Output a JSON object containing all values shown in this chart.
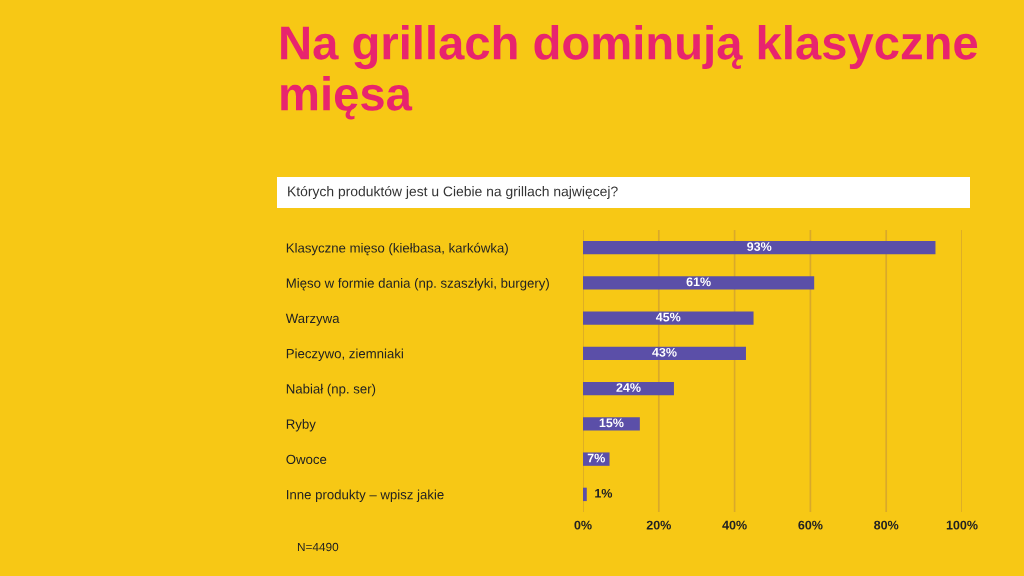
{
  "chart_data": {
    "type": "bar",
    "orientation": "horizontal",
    "title": "Na grillach dominują klasyczne mięsa",
    "subtitle": "Których produktów jest u Ciebie na grillach najwięcej?",
    "categories": [
      "Klasyczne mięso (kiełbasa, karkówka)",
      "Mięso w formie dania (np. szaszłyki, burgery)",
      "Warzywa",
      "Pieczywo, ziemniaki",
      "Nabiał (np. ser)",
      "Ryby",
      "Owoce",
      "Inne produkty – wpisz jakie"
    ],
    "values": [
      93,
      61,
      45,
      43,
      24,
      15,
      7,
      1
    ],
    "value_labels": [
      "93%",
      "61%",
      "45%",
      "43%",
      "24%",
      "15%",
      "7%",
      "1%"
    ],
    "color": "#5b4fa8",
    "xlim": [
      0,
      100
    ],
    "xticks": [
      {
        "value": 0,
        "label": "0%"
      },
      {
        "value": 20,
        "label": "20%"
      },
      {
        "value": 40,
        "label": "40%"
      },
      {
        "value": 60,
        "label": "60%"
      },
      {
        "value": 80,
        "label": "80%"
      },
      {
        "value": 100,
        "label": "100%"
      }
    ],
    "grid": "x",
    "annotations": [
      "N=4490"
    ]
  }
}
